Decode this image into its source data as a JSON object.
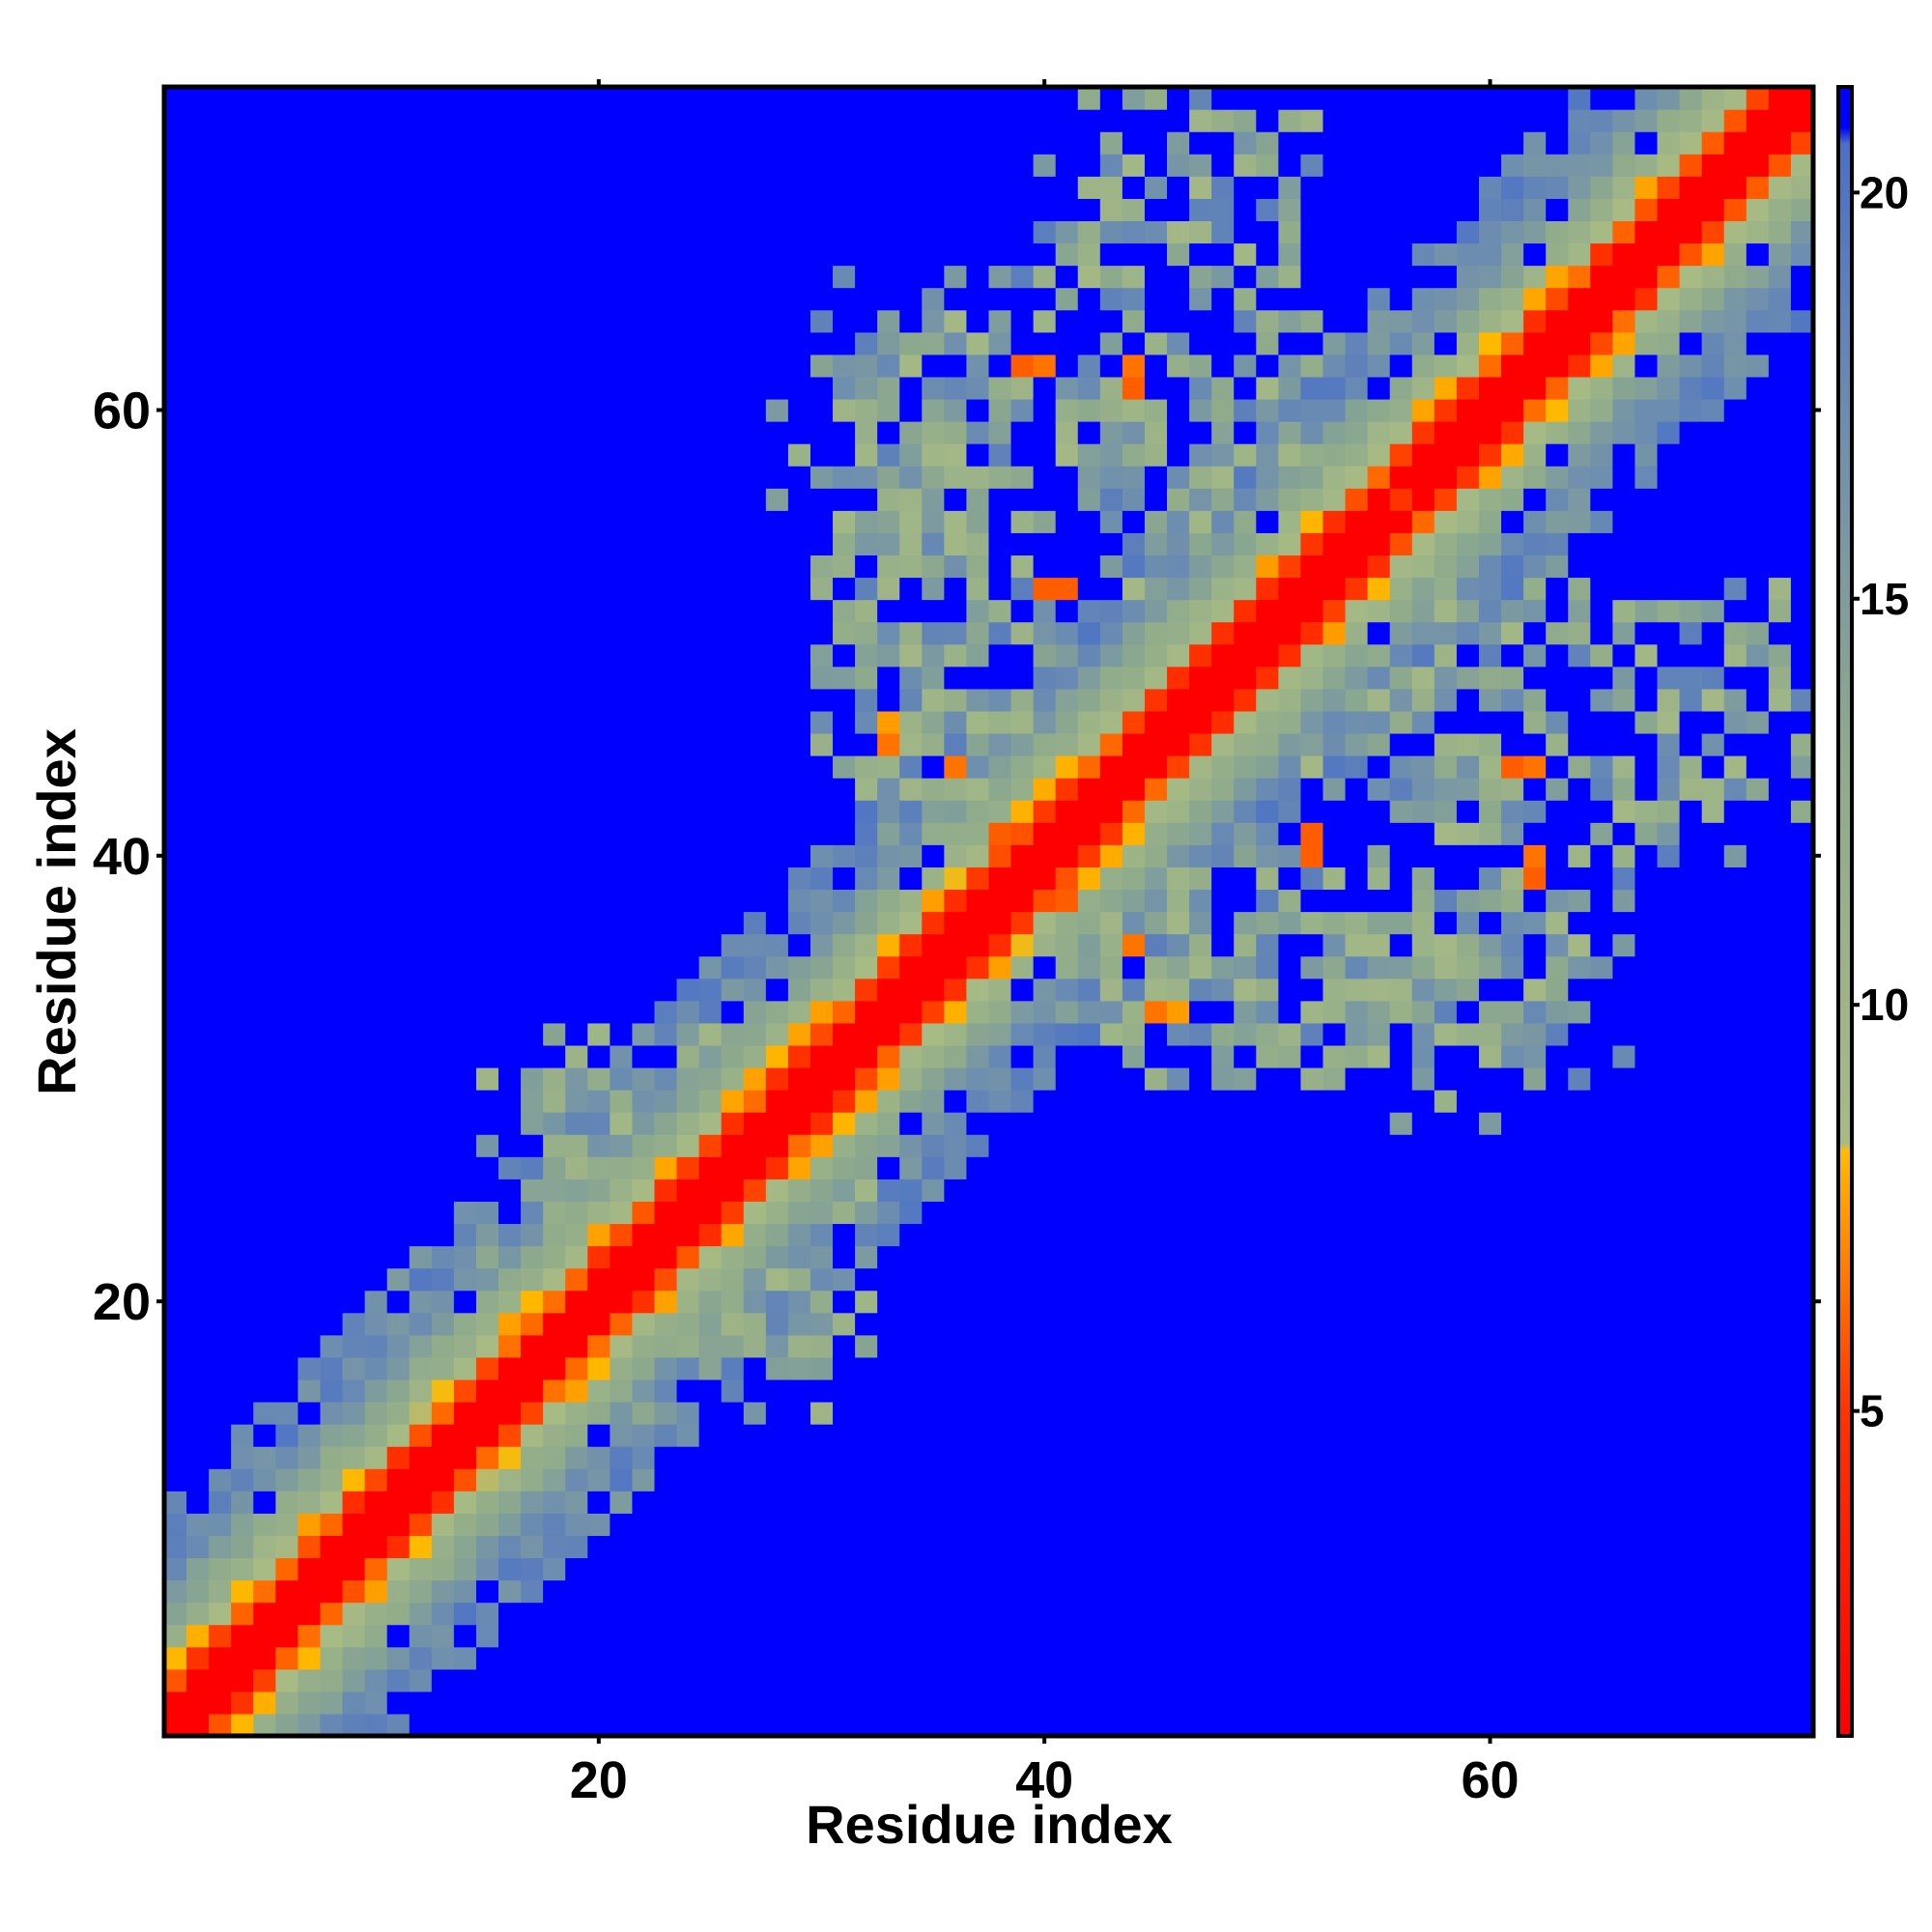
{
  "chart_data": {
    "type": "heatmap",
    "title": "",
    "xlabel": "Residue index",
    "ylabel": "Residue index",
    "n_residues": 74,
    "xlim": [
      1,
      74
    ],
    "ylim": [
      1,
      74
    ],
    "x_ticks": [
      20,
      40,
      60
    ],
    "y_ticks": [
      20,
      40,
      60
    ],
    "colorbar": {
      "ticks": [
        5,
        10,
        15,
        20
      ],
      "range": [
        1,
        21.3
      ],
      "colors": [
        {
          "value": 1.0,
          "color": "#ff0000"
        },
        {
          "value": 5.0,
          "color": "#ff3300"
        },
        {
          "value": 7.0,
          "color": "#ff8800"
        },
        {
          "value": 8.2,
          "color": "#ffbb00"
        },
        {
          "value": 8.3,
          "color": "#a8bb84"
        },
        {
          "value": 13.0,
          "color": "#8eaa8c"
        },
        {
          "value": 17.0,
          "color": "#6f8fae"
        },
        {
          "value": 20.6,
          "color": "#4a70c8"
        },
        {
          "value": 20.8,
          "color": "#0000ff"
        },
        {
          "value": 21.3,
          "color": "#0000ff"
        }
      ]
    },
    "cutoff": 20.5,
    "symmetric": true,
    "diagonal_band": [
      {
        "offset": 0,
        "value": 1.0
      },
      {
        "offset": 1,
        "value": 1.0
      },
      {
        "offset": 2,
        "value": 5.5
      },
      {
        "offset": 3,
        "value": 8.5
      },
      {
        "offset": 4,
        "value": 11.0
      },
      {
        "offset": 5,
        "value": 13.0
      },
      {
        "offset": 6,
        "value": 15.0
      },
      {
        "offset": 7,
        "value": 17.0
      }
    ],
    "contact_regions": [
      {
        "i_range": [
          30,
          40
        ],
        "j_range": [
          40,
          66
        ],
        "value_range": [
          9,
          19
        ],
        "fill_fraction": 0.72
      },
      {
        "i_range": [
          40,
          52
        ],
        "j_range": [
          52,
          74
        ],
        "value_range": [
          9,
          19
        ],
        "fill_fraction": 0.6
      },
      {
        "i_range": [
          28,
          36
        ],
        "j_range": [
          52,
          63
        ],
        "value_range": [
          10,
          18
        ],
        "fill_fraction": 0.45
      },
      {
        "i_range": [
          15,
          28
        ],
        "j_range": [
          20,
          33
        ],
        "value_range": [
          9,
          18
        ],
        "fill_fraction": 0.5
      }
    ],
    "highlighted_contacts": [
      {
        "i": 33,
        "j": 45,
        "value": 6.5
      },
      {
        "i": 33,
        "j": 46,
        "value": 7.5
      },
      {
        "i": 36,
        "j": 44,
        "value": 6.5
      },
      {
        "i": 38,
        "j": 41,
        "value": 6.0
      },
      {
        "i": 39,
        "j": 62,
        "value": 6.0
      },
      {
        "i": 40,
        "j": 62,
        "value": 6.5
      },
      {
        "i": 40,
        "j": 52,
        "value": 6.0
      },
      {
        "i": 61,
        "j": 44,
        "value": 6.0
      },
      {
        "i": 62,
        "j": 44,
        "value": 6.5
      },
      {
        "i": 52,
        "j": 41,
        "value": 6.0
      },
      {
        "i": 56,
        "j": 56,
        "value": 5.0
      }
    ]
  }
}
